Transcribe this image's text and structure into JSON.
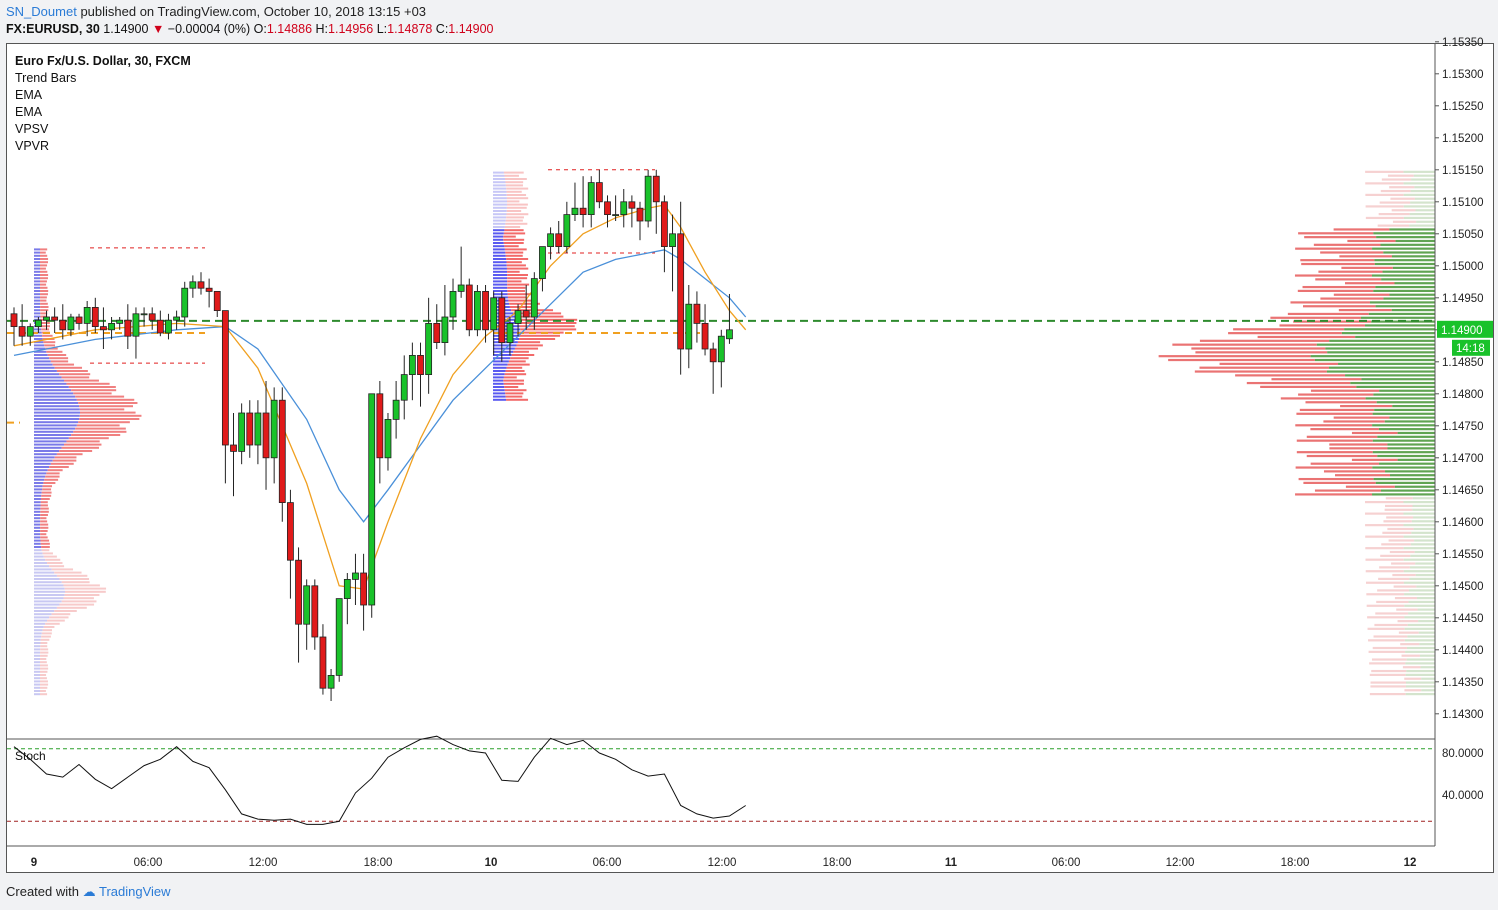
{
  "header": {
    "author": "SN_Doumet",
    "published": "published on TradingView.com, October 10, 2018 13:15 +03",
    "symbol": "FX:EURUSD, 30",
    "last": "1.14900",
    "change": "−0.00004 (0%)",
    "open_label": "O:",
    "open": "1.14886",
    "high_label": "H:",
    "high": "1.14956",
    "low_label": "L:",
    "low": "1.14878",
    "close_label": "C:",
    "close": "1.14900"
  },
  "legend": [
    "Euro Fx/U.S. Dollar, 30, FXCM",
    "Trend Bars",
    "EMA",
    "EMA",
    "VPSV",
    "VPVR"
  ],
  "footer": {
    "created": "Created with",
    "brand": "TradingView"
  },
  "colors": {
    "up": "#19c22a",
    "down": "#e01a1a",
    "ema_fast": "#f0a020",
    "ema_slow": "#4a90d9",
    "poc": "#2e8b2e",
    "stoch": "#111111"
  },
  "chart_data": {
    "type": "candlestick",
    "price_axis": {
      "ticks": [
        "1.15350",
        "1.15300",
        "1.15250",
        "1.15200",
        "1.15150",
        "1.15100",
        "1.15050",
        "1.15000",
        "1.14950",
        "1.14900",
        "1.14850",
        "1.14800",
        "1.14750",
        "1.14700",
        "1.14650",
        "1.14600",
        "1.14550",
        "1.14500",
        "1.14450",
        "1.14400",
        "1.14350",
        "1.14300"
      ],
      "range": [
        1.1429,
        1.1536
      ],
      "last_price": "1.14900",
      "countdown": "14:18"
    },
    "time_axis": {
      "ticks": [
        {
          "label": "9",
          "bold": true
        },
        {
          "label": "06:00",
          "bold": false
        },
        {
          "label": "12:00",
          "bold": false
        },
        {
          "label": "18:00",
          "bold": false
        },
        {
          "label": "10",
          "bold": true
        },
        {
          "label": "06:00",
          "bold": false
        },
        {
          "label": "12:00",
          "bold": false
        },
        {
          "label": "18:00",
          "bold": false
        },
        {
          "label": "11",
          "bold": true
        },
        {
          "label": "06:00",
          "bold": false
        },
        {
          "label": "12:00",
          "bold": false
        },
        {
          "label": "18:00",
          "bold": false
        },
        {
          "label": "12",
          "bold": true
        }
      ]
    },
    "candles": [
      [
        1.14925,
        1.14935,
        1.14875,
        1.14905
      ],
      [
        1.14905,
        1.1494,
        1.14875,
        1.1489
      ],
      [
        1.1489,
        1.1491,
        1.14875,
        1.14905
      ],
      [
        1.14905,
        1.1492,
        1.14895,
        1.14915
      ],
      [
        1.14915,
        1.1493,
        1.149,
        1.1492
      ],
      [
        1.1492,
        1.14935,
        1.14895,
        1.14915
      ],
      [
        1.14915,
        1.1494,
        1.14885,
        1.149
      ],
      [
        1.149,
        1.14925,
        1.1489,
        1.1492
      ],
      [
        1.1492,
        1.14925,
        1.149,
        1.1491
      ],
      [
        1.1491,
        1.14945,
        1.1489,
        1.14935
      ],
      [
        1.14935,
        1.1495,
        1.14895,
        1.14905
      ],
      [
        1.14905,
        1.14935,
        1.1487,
        1.149
      ],
      [
        1.149,
        1.1492,
        1.14885,
        1.1491
      ],
      [
        1.1491,
        1.1492,
        1.149,
        1.14915
      ],
      [
        1.14915,
        1.1494,
        1.1487,
        1.1489
      ],
      [
        1.1489,
        1.14935,
        1.14855,
        1.14925
      ],
      [
        1.14925,
        1.14935,
        1.14905,
        1.14925
      ],
      [
        1.14925,
        1.14935,
        1.149,
        1.14915
      ],
      [
        1.14915,
        1.1493,
        1.1489,
        1.14895
      ],
      [
        1.14895,
        1.14925,
        1.14885,
        1.14915
      ],
      [
        1.14915,
        1.1493,
        1.149,
        1.1492
      ],
      [
        1.1492,
        1.14975,
        1.14905,
        1.14965
      ],
      [
        1.14965,
        1.14985,
        1.1495,
        1.14975
      ],
      [
        1.14975,
        1.1499,
        1.14955,
        1.14965
      ],
      [
        1.14965,
        1.1498,
        1.14935,
        1.1496
      ],
      [
        1.1496,
        1.1496,
        1.1492,
        1.1493
      ],
      [
        1.1493,
        1.1493,
        1.1466,
        1.1472
      ],
      [
        1.1472,
        1.1477,
        1.1464,
        1.1471
      ],
      [
        1.1471,
        1.14785,
        1.1469,
        1.1477
      ],
      [
        1.1477,
        1.1479,
        1.147,
        1.1472
      ],
      [
        1.1472,
        1.1479,
        1.1469,
        1.1477
      ],
      [
        1.1477,
        1.1482,
        1.1465,
        1.147
      ],
      [
        1.147,
        1.1481,
        1.1466,
        1.1479
      ],
      [
        1.1479,
        1.1481,
        1.146,
        1.1463
      ],
      [
        1.1463,
        1.1465,
        1.1448,
        1.1454
      ],
      [
        1.1454,
        1.1456,
        1.1438,
        1.1444
      ],
      [
        1.1444,
        1.1451,
        1.144,
        1.145
      ],
      [
        1.145,
        1.1451,
        1.144,
        1.1442
      ],
      [
        1.1442,
        1.1444,
        1.1433,
        1.1434
      ],
      [
        1.1434,
        1.1437,
        1.1432,
        1.1436
      ],
      [
        1.1436,
        1.1448,
        1.1435,
        1.1448
      ],
      [
        1.1448,
        1.1452,
        1.1444,
        1.1451
      ],
      [
        1.1451,
        1.1455,
        1.1447,
        1.1452
      ],
      [
        1.1452,
        1.1455,
        1.1443,
        1.1447
      ],
      [
        1.1447,
        1.148,
        1.1445,
        1.148
      ],
      [
        1.148,
        1.1482,
        1.1466,
        1.147
      ],
      [
        1.147,
        1.1477,
        1.1468,
        1.1476
      ],
      [
        1.1476,
        1.1482,
        1.1473,
        1.1479
      ],
      [
        1.1479,
        1.1486,
        1.1476,
        1.1483
      ],
      [
        1.1483,
        1.1488,
        1.1479,
        1.1486
      ],
      [
        1.1486,
        1.1488,
        1.1478,
        1.1483
      ],
      [
        1.1483,
        1.1495,
        1.148,
        1.1491
      ],
      [
        1.1491,
        1.1494,
        1.1487,
        1.1488
      ],
      [
        1.1488,
        1.1497,
        1.1486,
        1.1492
      ],
      [
        1.1492,
        1.1498,
        1.149,
        1.1496
      ],
      [
        1.1496,
        1.1503,
        1.1495,
        1.1497
      ],
      [
        1.1497,
        1.1498,
        1.1489,
        1.149
      ],
      [
        1.149,
        1.1497,
        1.1489,
        1.1496
      ],
      [
        1.1496,
        1.1497,
        1.1488,
        1.149
      ],
      [
        1.149,
        1.1496,
        1.1486,
        1.1495
      ],
      [
        1.1495,
        1.1496,
        1.1485,
        1.1488
      ],
      [
        1.1488,
        1.1492,
        1.1486,
        1.1491
      ],
      [
        1.1491,
        1.1494,
        1.1489,
        1.1493
      ],
      [
        1.1493,
        1.1497,
        1.149,
        1.1492
      ],
      [
        1.1492,
        1.1499,
        1.149,
        1.1498
      ],
      [
        1.1498,
        1.1503,
        1.1496,
        1.1503
      ],
      [
        1.1503,
        1.1506,
        1.1501,
        1.1505
      ],
      [
        1.1505,
        1.1507,
        1.1502,
        1.1503
      ],
      [
        1.1503,
        1.151,
        1.1502,
        1.1508
      ],
      [
        1.1508,
        1.1513,
        1.1507,
        1.1509
      ],
      [
        1.1509,
        1.1514,
        1.1506,
        1.1508
      ],
      [
        1.1508,
        1.1514,
        1.1506,
        1.1513
      ],
      [
        1.1513,
        1.1515,
        1.1509,
        1.151
      ],
      [
        1.151,
        1.1511,
        1.1506,
        1.1508
      ],
      [
        1.1508,
        1.1511,
        1.1507,
        1.1508
      ],
      [
        1.1508,
        1.1512,
        1.1506,
        1.151
      ],
      [
        1.151,
        1.1511,
        1.1506,
        1.1509
      ],
      [
        1.1509,
        1.151,
        1.1504,
        1.1507
      ],
      [
        1.1507,
        1.1515,
        1.1506,
        1.1514
      ],
      [
        1.1514,
        1.1515,
        1.1505,
        1.151
      ],
      [
        1.151,
        1.1511,
        1.1499,
        1.1503
      ],
      [
        1.1503,
        1.1508,
        1.1496,
        1.1505
      ],
      [
        1.1505,
        1.151,
        1.1483,
        1.1487
      ],
      [
        1.1487,
        1.1497,
        1.1484,
        1.1494
      ],
      [
        1.1494,
        1.1496,
        1.1488,
        1.1491
      ],
      [
        1.1491,
        1.1494,
        1.1486,
        1.1487
      ],
      [
        1.1487,
        1.1488,
        1.148,
        1.1485
      ],
      [
        1.1485,
        1.149,
        1.1481,
        1.1489
      ],
      [
        1.14886,
        1.14956,
        1.14878,
        1.149
      ]
    ],
    "ema_fast": [
      [
        0,
        1.14875
      ],
      [
        10,
        1.149
      ],
      [
        20,
        1.1491
      ],
      [
        26,
        1.14905
      ],
      [
        30,
        1.1484
      ],
      [
        36,
        1.1466
      ],
      [
        40,
        1.145
      ],
      [
        43,
        1.14495
      ],
      [
        46,
        1.146
      ],
      [
        50,
        1.1473
      ],
      [
        54,
        1.1483
      ],
      [
        58,
        1.1489
      ],
      [
        62,
        1.1493
      ],
      [
        66,
        1.15
      ],
      [
        70,
        1.1505
      ],
      [
        74,
        1.15075
      ],
      [
        78,
        1.1509
      ],
      [
        80,
        1.15095
      ],
      [
        82,
        1.1506
      ],
      [
        85,
        1.1499
      ],
      [
        88,
        1.1493
      ],
      [
        90,
        1.149
      ]
    ],
    "ema_slow": [
      [
        0,
        1.1486
      ],
      [
        10,
        1.14885
      ],
      [
        20,
        1.149
      ],
      [
        26,
        1.14905
      ],
      [
        30,
        1.1487
      ],
      [
        36,
        1.1476
      ],
      [
        40,
        1.1465
      ],
      [
        43,
        1.146
      ],
      [
        46,
        1.1465
      ],
      [
        50,
        1.1472
      ],
      [
        54,
        1.1479
      ],
      [
        58,
        1.1484
      ],
      [
        62,
        1.1489
      ],
      [
        66,
        1.1494
      ],
      [
        70,
        1.1499
      ],
      [
        74,
        1.1501
      ],
      [
        78,
        1.1502
      ],
      [
        80,
        1.15025
      ],
      [
        82,
        1.1501
      ],
      [
        85,
        1.1498
      ],
      [
        88,
        1.1495
      ],
      [
        90,
        1.1492
      ]
    ],
    "stoch": {
      "label": "Stoch",
      "ticks": [
        "80.0000",
        "40.0000"
      ],
      "bands": [
        84,
        15
      ],
      "values": [
        [
          0,
          86
        ],
        [
          2,
          74
        ],
        [
          4,
          60
        ],
        [
          6,
          57
        ],
        [
          8,
          69
        ],
        [
          10,
          55
        ],
        [
          12,
          46
        ],
        [
          14,
          57
        ],
        [
          16,
          68
        ],
        [
          18,
          74
        ],
        [
          20,
          86
        ],
        [
          22,
          72
        ],
        [
          24,
          66
        ],
        [
          26,
          45
        ],
        [
          28,
          22
        ],
        [
          30,
          17
        ],
        [
          32,
          16
        ],
        [
          34,
          17
        ],
        [
          36,
          12
        ],
        [
          38,
          12
        ],
        [
          40,
          15
        ],
        [
          42,
          42
        ],
        [
          44,
          56
        ],
        [
          46,
          76
        ],
        [
          48,
          85
        ],
        [
          50,
          93
        ],
        [
          52,
          96
        ],
        [
          54,
          88
        ],
        [
          56,
          82
        ],
        [
          58,
          80
        ],
        [
          60,
          54
        ],
        [
          62,
          53
        ],
        [
          64,
          76
        ],
        [
          66,
          94
        ],
        [
          68,
          88
        ],
        [
          70,
          92
        ],
        [
          72,
          80
        ],
        [
          74,
          74
        ],
        [
          76,
          64
        ],
        [
          78,
          58
        ],
        [
          80,
          60
        ],
        [
          82,
          30
        ],
        [
          84,
          22
        ],
        [
          86,
          18
        ],
        [
          88,
          20
        ],
        [
          90,
          30
        ]
      ]
    }
  }
}
